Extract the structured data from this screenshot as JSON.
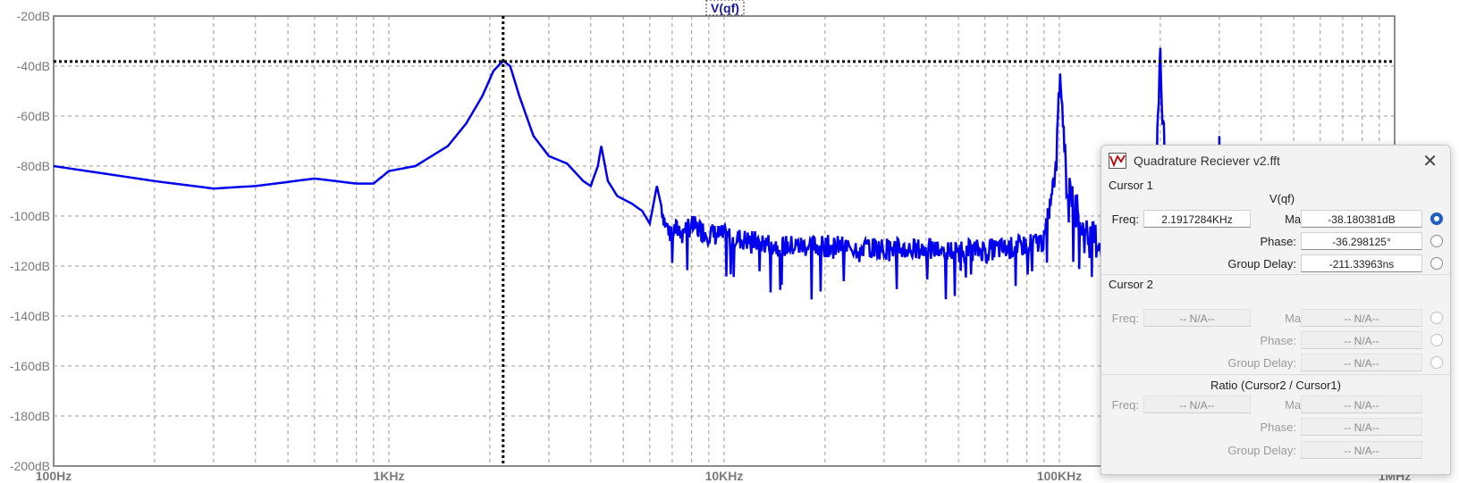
{
  "chart_data": {
    "type": "line",
    "title": "V(qf)",
    "x_scale": "log",
    "xlim": [
      100,
      1000000
    ],
    "ylim": [
      -200,
      -20
    ],
    "x_tick_labels": [
      "100Hz",
      "1KHz",
      "10KHz",
      "100KHz",
      "1MHz"
    ],
    "y_tick_labels": [
      "-20dB",
      "-40dB",
      "-60dB",
      "-80dB",
      "-100dB",
      "-120dB",
      "-140dB",
      "-160dB",
      "-180dB",
      "-200dB"
    ],
    "grid": true,
    "series": [
      {
        "name": "V(qf)",
        "color": "#0000ee",
        "x": [
          100,
          200,
          300,
          400,
          600,
          800,
          900,
          1000,
          1200,
          1500,
          1700,
          1900,
          2050,
          2150,
          2200,
          2300,
          2450,
          2700,
          3000,
          3400,
          3800,
          4000,
          4200,
          4300,
          4500,
          4800,
          5300,
          5700,
          6000,
          6300,
          6500,
          6700,
          7000,
          7500,
          8000,
          9000,
          10000,
          12000,
          15000,
          20000,
          30000,
          50000,
          70000,
          90000,
          98000,
          100000,
          105000,
          120000,
          150000,
          180000,
          195000,
          200000,
          210000,
          250000,
          300000,
          400000,
          500000,
          700000,
          1000000
        ],
        "y": [
          -80,
          -86,
          -89,
          -88,
          -85,
          -87,
          -87,
          -82,
          -80,
          -72,
          -63,
          -52,
          -42,
          -39,
          -38,
          -40,
          -52,
          -68,
          -76,
          -79,
          -86,
          -88,
          -80,
          -72,
          -86,
          -92,
          -95,
          -98,
          -103,
          -88,
          -96,
          -104,
          -106,
          -105,
          -104,
          -107,
          -108,
          -110,
          -112,
          -112,
          -113,
          -114,
          -113,
          -110,
          -80,
          -37,
          -85,
          -109,
          -111,
          -108,
          -80,
          -38,
          -100,
          -110,
          -112,
          -114,
          -115,
          -118,
          -120
        ]
      }
    ],
    "cursor": {
      "freq_hz": 2191.7284,
      "mag_db": -38.180381
    }
  },
  "cursor_window": {
    "title": "Quadrature Reciever v2.fft",
    "close_symbol": "✕",
    "cursor1": {
      "label": "Cursor 1",
      "trace": "V(qf)",
      "freq_label": "Freq:",
      "freq_value": "2.1917284KHz",
      "mag_label": "Mag:",
      "mag_value": "-38.180381dB",
      "phase_label": "Phase:",
      "phase_value": "-36.298125°",
      "gd_label": "Group Delay:",
      "gd_value": "-211.33963ns"
    },
    "cursor2": {
      "label": "Cursor 2",
      "freq_label": "Freq:",
      "freq_value": "-- N/A--",
      "mag_label": "Mag:",
      "mag_value": "-- N/A--",
      "phase_label": "Phase:",
      "phase_value": "-- N/A--",
      "gd_label": "Group Delay:",
      "gd_value": "-- N/A--"
    },
    "ratio": {
      "label": "Ratio (Cursor2 / Cursor1)",
      "freq_label": "Freq:",
      "freq_value": "-- N/A--",
      "mag_label": "Mag:",
      "mag_value": "-- N/A--",
      "phase_label": "Phase:",
      "phase_value": "-- N/A--",
      "gd_label": "Group Delay:",
      "gd_value": "-- N/A--"
    }
  }
}
